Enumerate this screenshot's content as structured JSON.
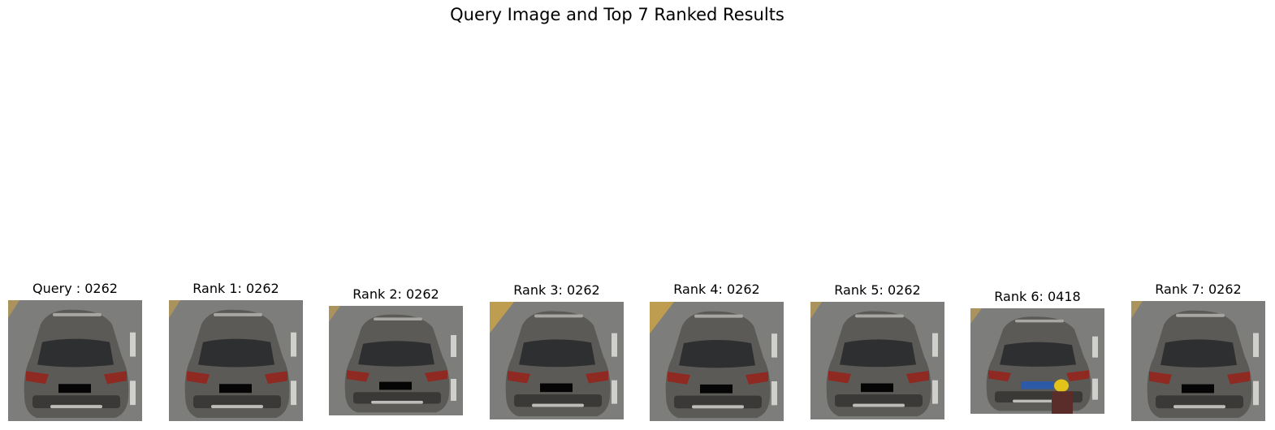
{
  "figure": {
    "title": "Query Image and Top 7 Ranked Results"
  },
  "panels": [
    {
      "label": "Query : 0262",
      "image": "gray-suv-rear-view",
      "plate_text": "",
      "extras": ""
    },
    {
      "label": "Rank 1: 0262",
      "image": "gray-suv-rear-view",
      "plate_text": "",
      "extras": ""
    },
    {
      "label": "Rank 2: 0262",
      "image": "gray-suv-rear-view",
      "plate_text": "",
      "extras": ""
    },
    {
      "label": "Rank 3: 0262",
      "image": "gray-suv-rear-view-angled",
      "plate_text": "",
      "extras": "yellow-barrier"
    },
    {
      "label": "Rank 4: 0262",
      "image": "gray-suv-rear-view",
      "plate_text": "",
      "extras": "yellow-barrier"
    },
    {
      "label": "Rank 5: 0262",
      "image": "gray-suv-rear-view-closeup",
      "plate_text": "",
      "extras": ""
    },
    {
      "label": "Rank 6: 0418",
      "image": "gray-suv-rear-view-blue-plate",
      "plate_text": "",
      "extras": "yellow-helmet-rider"
    },
    {
      "label": "Rank 7: 0262",
      "image": "gray-suv-rear-view",
      "plate_text": "",
      "extras": ""
    }
  ],
  "colors": {
    "road": "#7d7d7b",
    "car_body": "#5c5a57",
    "car_dark": "#3a3937",
    "window": "#2e2f31",
    "tail_light": "#8e2a22",
    "plate_mask": "#050505",
    "plate_blue": "#2d5aa8",
    "barrier": "#c9a24a",
    "helmet": "#e3c21a"
  }
}
